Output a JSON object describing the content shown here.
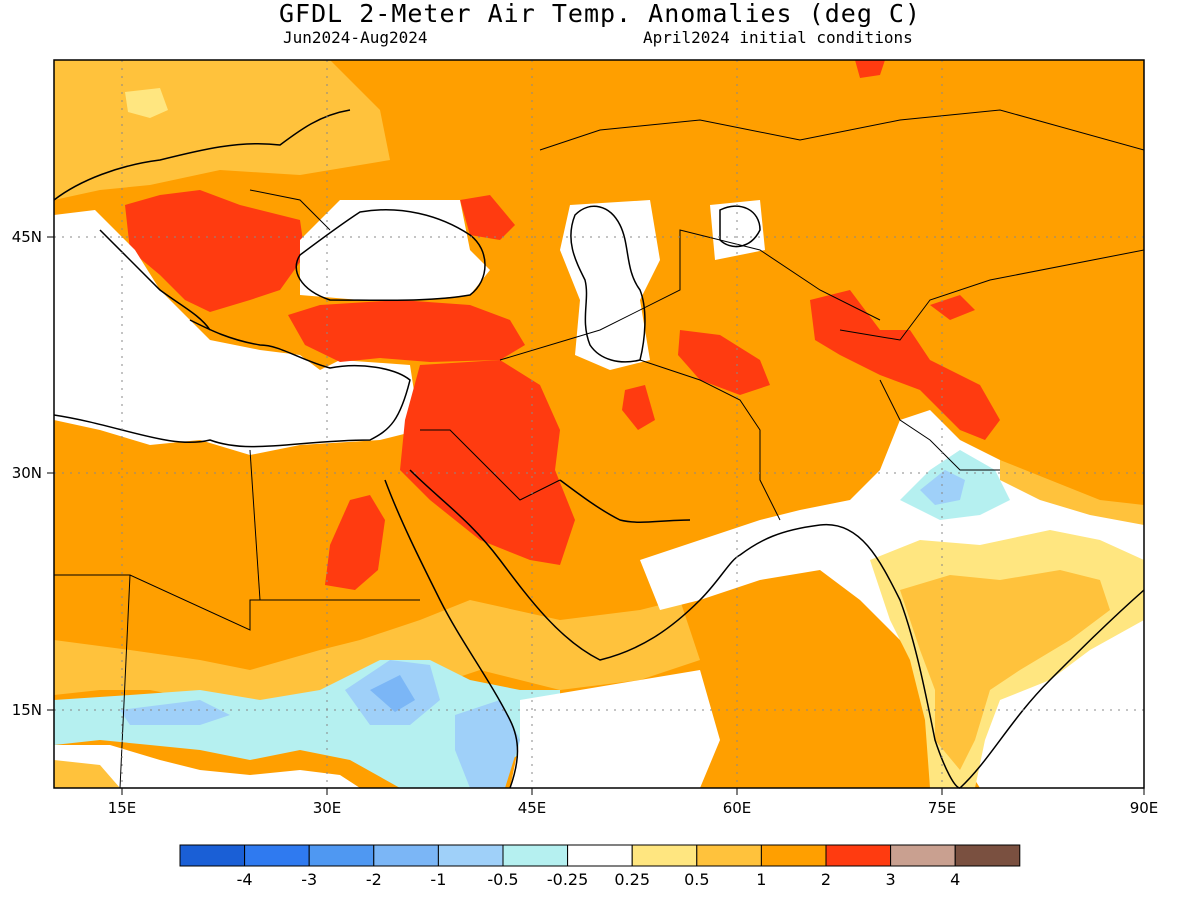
{
  "header": {
    "title": "GFDL 2-Meter Air Temp. Anomalies (deg C)",
    "period": "Jun2024-Aug2024",
    "init": "April2024 initial conditions"
  },
  "axes": {
    "lon_labels": [
      "15E",
      "30E",
      "45E",
      "60E",
      "75E",
      "90E"
    ],
    "lat_labels": [
      "45N",
      "30N",
      "15N"
    ]
  },
  "colorbar": {
    "colors": [
      "#1a5fd6",
      "#2f7af0",
      "#4f98f2",
      "#7bb6f6",
      "#9fd0f9",
      "#b5f0f0",
      "#ffffff",
      "#ffe680",
      "#ffc23c",
      "#ff9f00",
      "#ff3b10",
      "#c9a090",
      "#7a5040"
    ],
    "labels": [
      "-4",
      "-3",
      "-2",
      "-1",
      "-0.5",
      "-0.25",
      "0.25",
      "0.5",
      "1",
      "2",
      "3",
      "4"
    ]
  },
  "colors": {
    "strong_warm": "#ff9f00",
    "very_warm": "#ff3b10",
    "warm": "#ffc23c",
    "slight_warm": "#ffe680",
    "neutral": "#ffffff",
    "slight_cool": "#b5f0f0",
    "cool": "#9fd0f9",
    "cooler": "#7bb6f6"
  }
}
